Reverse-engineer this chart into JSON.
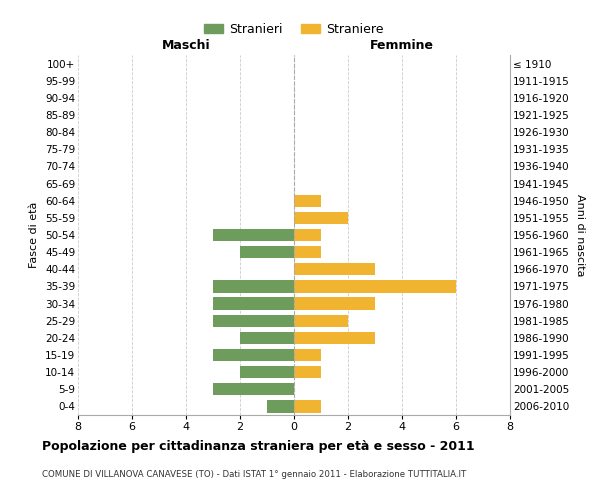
{
  "age_groups": [
    "100+",
    "95-99",
    "90-94",
    "85-89",
    "80-84",
    "75-79",
    "70-74",
    "65-69",
    "60-64",
    "55-59",
    "50-54",
    "45-49",
    "40-44",
    "35-39",
    "30-34",
    "25-29",
    "20-24",
    "15-19",
    "10-14",
    "5-9",
    "0-4"
  ],
  "birth_years": [
    "≤ 1910",
    "1911-1915",
    "1916-1920",
    "1921-1925",
    "1926-1930",
    "1931-1935",
    "1936-1940",
    "1941-1945",
    "1946-1950",
    "1951-1955",
    "1956-1960",
    "1961-1965",
    "1966-1970",
    "1971-1975",
    "1976-1980",
    "1981-1985",
    "1986-1990",
    "1991-1995",
    "1996-2000",
    "2001-2005",
    "2006-2010"
  ],
  "maschi": [
    0,
    0,
    0,
    0,
    0,
    0,
    0,
    0,
    0,
    0,
    3,
    2,
    0,
    3,
    3,
    3,
    2,
    3,
    2,
    3,
    1
  ],
  "femmine": [
    0,
    0,
    0,
    0,
    0,
    0,
    0,
    0,
    1,
    2,
    1,
    1,
    3,
    6,
    3,
    2,
    3,
    1,
    1,
    0,
    1
  ],
  "color_maschi": "#6e9c5c",
  "color_femmine": "#f0b430",
  "title": "Popolazione per cittadinanza straniera per età e sesso - 2011",
  "subtitle": "COMUNE DI VILLANOVA CANAVESE (TO) - Dati ISTAT 1° gennaio 2011 - Elaborazione TUTTITALIA.IT",
  "xlabel_left": "Maschi",
  "xlabel_right": "Femmine",
  "ylabel_left": "Fasce di età",
  "ylabel_right": "Anni di nascita",
  "legend_maschi": "Stranieri",
  "legend_femmine": "Straniere",
  "xlim": 8,
  "background_color": "#ffffff",
  "grid_color": "#cccccc"
}
